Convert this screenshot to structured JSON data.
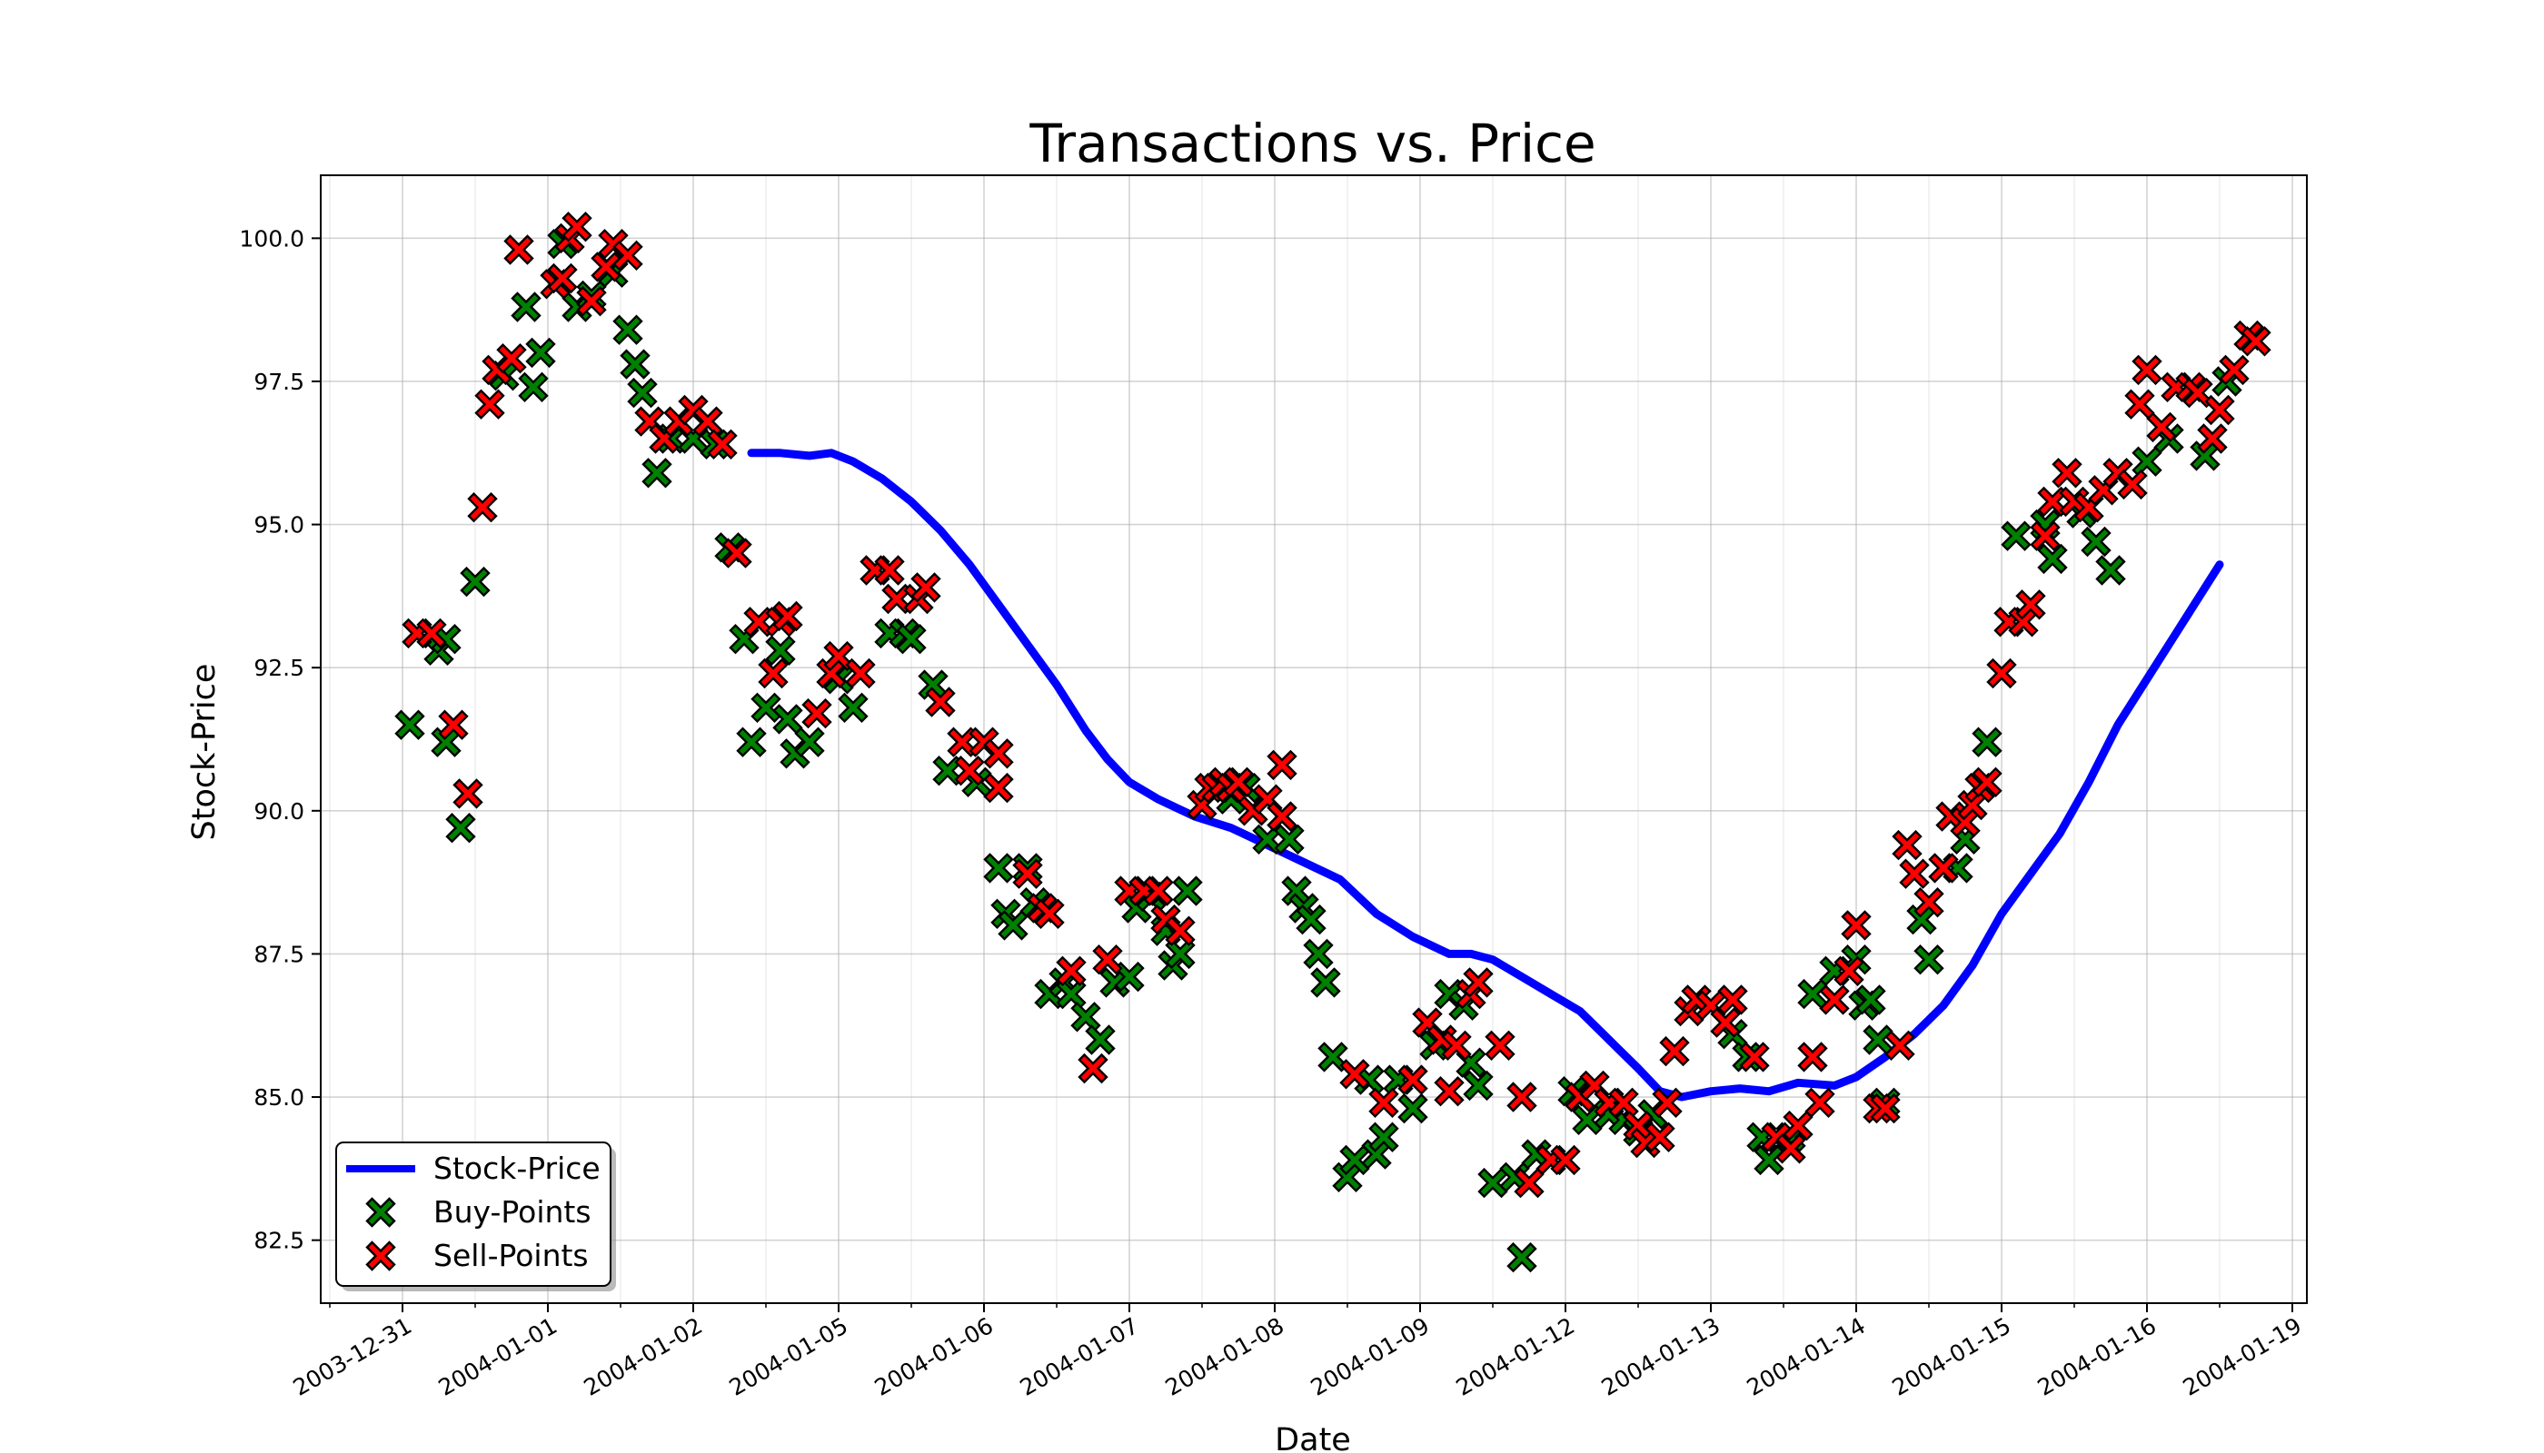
{
  "chart_data": {
    "type": "line+scatter",
    "title": "Transactions vs. Price",
    "xlabel": "Date",
    "ylabel": "Stock-Price",
    "ylim": [
      81.4,
      101.1
    ],
    "x_tick_labels": [
      "2003-12-31",
      "2004-01-01",
      "2004-01-02",
      "2004-01-05",
      "2004-01-06",
      "2004-01-07",
      "2004-01-08",
      "2004-01-09",
      "2004-01-12",
      "2004-01-13",
      "2004-01-14",
      "2004-01-15",
      "2004-01-16",
      "2004-01-19"
    ],
    "y_ticks": [
      82.5,
      85.0,
      87.5,
      90.0,
      92.5,
      95.0,
      97.5,
      100.0
    ],
    "y_tick_labels": [
      "82.5",
      "85.0",
      "87.5",
      "90.0",
      "92.5",
      "95.0",
      "97.5",
      "100.0"
    ],
    "grid": true,
    "legend_position": "lower-left",
    "x_axis_note": "x values are measured in trading-session positions: 0 = 2003-12-31, 1 = 2004-01-01, ... 13 = 2004-01-19",
    "series": [
      {
        "name": "Stock-Price",
        "type": "line",
        "color": "#0000ff",
        "points": [
          [
            2.4,
            96.25
          ],
          [
            2.6,
            96.25
          ],
          [
            2.8,
            96.2
          ],
          [
            2.95,
            96.25
          ],
          [
            3.1,
            96.1
          ],
          [
            3.3,
            95.8
          ],
          [
            3.5,
            95.4
          ],
          [
            3.7,
            94.9
          ],
          [
            3.9,
            94.3
          ],
          [
            4.1,
            93.6
          ],
          [
            4.3,
            92.9
          ],
          [
            4.5,
            92.2
          ],
          [
            4.7,
            91.4
          ],
          [
            4.85,
            90.9
          ],
          [
            5.0,
            90.5
          ],
          [
            5.2,
            90.2
          ],
          [
            5.45,
            89.9
          ],
          [
            5.7,
            89.7
          ],
          [
            5.95,
            89.4
          ],
          [
            6.2,
            89.1
          ],
          [
            6.45,
            88.8
          ],
          [
            6.7,
            88.2
          ],
          [
            6.95,
            87.8
          ],
          [
            7.2,
            87.5
          ],
          [
            7.35,
            87.5
          ],
          [
            7.5,
            87.4
          ],
          [
            7.7,
            87.1
          ],
          [
            7.9,
            86.8
          ],
          [
            8.1,
            86.5
          ],
          [
            8.3,
            86.0
          ],
          [
            8.5,
            85.5
          ],
          [
            8.65,
            85.1
          ],
          [
            8.8,
            85.0
          ],
          [
            9.0,
            85.1
          ],
          [
            9.2,
            85.15
          ],
          [
            9.4,
            85.1
          ],
          [
            9.6,
            85.25
          ],
          [
            9.85,
            85.2
          ],
          [
            10.0,
            85.35
          ],
          [
            10.2,
            85.7
          ],
          [
            10.4,
            86.1
          ],
          [
            10.6,
            86.6
          ],
          [
            10.8,
            87.3
          ],
          [
            11.0,
            88.2
          ],
          [
            11.2,
            88.9
          ],
          [
            11.4,
            89.6
          ],
          [
            11.6,
            90.5
          ],
          [
            11.8,
            91.5
          ],
          [
            12.0,
            92.3
          ],
          [
            12.2,
            93.1
          ],
          [
            12.5,
            94.3
          ]
        ]
      },
      {
        "name": "Buy-Points",
        "type": "scatter",
        "color": "#008000",
        "points": [
          [
            0.05,
            91.5
          ],
          [
            0.25,
            92.8
          ],
          [
            0.3,
            93.0
          ],
          [
            0.3,
            91.2
          ],
          [
            0.4,
            89.7
          ],
          [
            0.5,
            94.0
          ],
          [
            0.7,
            97.6
          ],
          [
            0.85,
            98.8
          ],
          [
            0.9,
            97.4
          ],
          [
            0.95,
            98.0
          ],
          [
            1.1,
            99.9
          ],
          [
            1.2,
            98.8
          ],
          [
            1.3,
            99.0
          ],
          [
            1.45,
            99.4
          ],
          [
            1.55,
            98.4
          ],
          [
            1.6,
            97.8
          ],
          [
            1.65,
            97.3
          ],
          [
            1.75,
            95.9
          ],
          [
            1.85,
            96.5
          ],
          [
            2.0,
            96.5
          ],
          [
            2.15,
            96.4
          ],
          [
            2.25,
            94.6
          ],
          [
            2.35,
            93.0
          ],
          [
            2.4,
            91.2
          ],
          [
            2.5,
            91.8
          ],
          [
            2.6,
            92.8
          ],
          [
            2.65,
            91.6
          ],
          [
            2.7,
            91.0
          ],
          [
            2.8,
            91.2
          ],
          [
            3.0,
            92.3
          ],
          [
            3.1,
            91.8
          ],
          [
            3.35,
            93.1
          ],
          [
            3.45,
            93.1
          ],
          [
            3.5,
            93.0
          ],
          [
            3.65,
            92.2
          ],
          [
            3.75,
            90.7
          ],
          [
            3.95,
            90.5
          ],
          [
            4.1,
            89.0
          ],
          [
            4.15,
            88.2
          ],
          [
            4.2,
            88.0
          ],
          [
            4.3,
            89.0
          ],
          [
            4.35,
            88.4
          ],
          [
            4.45,
            86.8
          ],
          [
            4.55,
            87.0
          ],
          [
            4.6,
            86.8
          ],
          [
            4.7,
            86.4
          ],
          [
            4.8,
            86.0
          ],
          [
            4.9,
            87.0
          ],
          [
            5.0,
            87.1
          ],
          [
            5.05,
            88.3
          ],
          [
            5.15,
            88.5
          ],
          [
            5.25,
            87.9
          ],
          [
            5.3,
            87.3
          ],
          [
            5.35,
            87.5
          ],
          [
            5.4,
            88.6
          ],
          [
            5.7,
            90.2
          ],
          [
            5.8,
            90.4
          ],
          [
            5.95,
            89.5
          ],
          [
            6.05,
            89.9
          ],
          [
            6.1,
            89.5
          ],
          [
            6.15,
            88.6
          ],
          [
            6.2,
            88.3
          ],
          [
            6.25,
            88.1
          ],
          [
            6.3,
            87.5
          ],
          [
            6.35,
            87.0
          ],
          [
            6.4,
            85.7
          ],
          [
            6.5,
            83.6
          ],
          [
            6.55,
            83.9
          ],
          [
            6.65,
            85.3
          ],
          [
            6.7,
            84.0
          ],
          [
            6.75,
            84.3
          ],
          [
            6.85,
            85.3
          ],
          [
            6.95,
            84.8
          ],
          [
            7.1,
            85.9
          ],
          [
            7.2,
            86.8
          ],
          [
            7.3,
            86.6
          ],
          [
            7.35,
            85.6
          ],
          [
            7.4,
            85.2
          ],
          [
            7.5,
            83.5
          ],
          [
            7.65,
            83.6
          ],
          [
            7.7,
            82.2
          ],
          [
            7.8,
            84.0
          ],
          [
            8.05,
            85.1
          ],
          [
            8.15,
            84.6
          ],
          [
            8.3,
            84.7
          ],
          [
            8.4,
            84.6
          ],
          [
            8.5,
            84.4
          ],
          [
            8.6,
            84.7
          ],
          [
            9.15,
            86.1
          ],
          [
            9.25,
            85.7
          ],
          [
            9.35,
            84.3
          ],
          [
            9.4,
            83.9
          ],
          [
            9.55,
            84.3
          ],
          [
            9.7,
            86.8
          ],
          [
            9.85,
            87.2
          ],
          [
            10.0,
            87.4
          ],
          [
            10.05,
            86.6
          ],
          [
            10.1,
            86.7
          ],
          [
            10.15,
            86.0
          ],
          [
            10.2,
            84.9
          ],
          [
            10.45,
            88.1
          ],
          [
            10.5,
            87.4
          ],
          [
            10.7,
            89.0
          ],
          [
            10.75,
            89.5
          ],
          [
            10.9,
            91.2
          ],
          [
            11.1,
            94.8
          ],
          [
            11.3,
            95.0
          ],
          [
            11.35,
            94.4
          ],
          [
            11.55,
            95.2
          ],
          [
            11.65,
            94.7
          ],
          [
            11.75,
            94.2
          ],
          [
            12.0,
            96.1
          ],
          [
            12.15,
            96.5
          ],
          [
            12.4,
            96.2
          ],
          [
            12.55,
            97.5
          ]
        ]
      },
      {
        "name": "Sell-Points",
        "type": "scatter",
        "color": "#ff0000",
        "points": [
          [
            0.1,
            93.1
          ],
          [
            0.2,
            93.1
          ],
          [
            0.35,
            91.5
          ],
          [
            0.45,
            90.3
          ],
          [
            0.55,
            95.3
          ],
          [
            0.6,
            97.1
          ],
          [
            0.65,
            97.7
          ],
          [
            0.75,
            97.9
          ],
          [
            0.8,
            99.8
          ],
          [
            1.05,
            99.2
          ],
          [
            1.1,
            99.3
          ],
          [
            1.15,
            100.0
          ],
          [
            1.2,
            100.2
          ],
          [
            1.3,
            98.9
          ],
          [
            1.4,
            99.5
          ],
          [
            1.45,
            99.9
          ],
          [
            1.55,
            99.7
          ],
          [
            1.7,
            96.8
          ],
          [
            1.8,
            96.5
          ],
          [
            1.9,
            96.8
          ],
          [
            2.0,
            97.0
          ],
          [
            2.1,
            96.8
          ],
          [
            2.2,
            96.4
          ],
          [
            2.3,
            94.5
          ],
          [
            2.45,
            93.3
          ],
          [
            2.55,
            92.4
          ],
          [
            2.6,
            93.3
          ],
          [
            2.65,
            93.4
          ],
          [
            2.85,
            91.7
          ],
          [
            2.95,
            92.4
          ],
          [
            3.0,
            92.7
          ],
          [
            3.15,
            92.4
          ],
          [
            3.25,
            94.2
          ],
          [
            3.35,
            94.2
          ],
          [
            3.4,
            93.7
          ],
          [
            3.55,
            93.7
          ],
          [
            3.6,
            93.9
          ],
          [
            3.7,
            91.9
          ],
          [
            3.85,
            91.2
          ],
          [
            3.9,
            90.7
          ],
          [
            4.0,
            91.2
          ],
          [
            4.1,
            91.0
          ],
          [
            4.1,
            90.4
          ],
          [
            4.3,
            88.9
          ],
          [
            4.4,
            88.3
          ],
          [
            4.45,
            88.2
          ],
          [
            4.6,
            87.2
          ],
          [
            4.75,
            85.5
          ],
          [
            4.85,
            87.4
          ],
          [
            5.0,
            88.6
          ],
          [
            5.1,
            88.6
          ],
          [
            5.2,
            88.6
          ],
          [
            5.25,
            88.1
          ],
          [
            5.35,
            87.9
          ],
          [
            5.5,
            90.1
          ],
          [
            5.55,
            90.4
          ],
          [
            5.6,
            90.4
          ],
          [
            5.65,
            90.5
          ],
          [
            5.7,
            90.4
          ],
          [
            5.75,
            90.5
          ],
          [
            5.85,
            90.0
          ],
          [
            5.95,
            90.2
          ],
          [
            6.05,
            89.9
          ],
          [
            6.05,
            90.8
          ],
          [
            6.55,
            85.4
          ],
          [
            6.75,
            84.9
          ],
          [
            6.95,
            85.3
          ],
          [
            7.05,
            86.3
          ],
          [
            7.15,
            86.0
          ],
          [
            7.2,
            85.1
          ],
          [
            7.25,
            85.9
          ],
          [
            7.35,
            86.8
          ],
          [
            7.4,
            87.0
          ],
          [
            7.55,
            85.9
          ],
          [
            7.7,
            85.0
          ],
          [
            7.75,
            83.5
          ],
          [
            7.9,
            83.9
          ],
          [
            8.0,
            83.9
          ],
          [
            8.1,
            85.0
          ],
          [
            8.2,
            85.2
          ],
          [
            8.3,
            84.9
          ],
          [
            8.4,
            84.9
          ],
          [
            8.5,
            84.5
          ],
          [
            8.55,
            84.2
          ],
          [
            8.65,
            84.3
          ],
          [
            8.7,
            84.9
          ],
          [
            8.75,
            85.8
          ],
          [
            8.85,
            86.5
          ],
          [
            8.9,
            86.7
          ],
          [
            9.0,
            86.6
          ],
          [
            9.1,
            86.3
          ],
          [
            9.15,
            86.7
          ],
          [
            9.3,
            85.7
          ],
          [
            9.45,
            84.3
          ],
          [
            9.55,
            84.1
          ],
          [
            9.6,
            84.5
          ],
          [
            9.7,
            85.7
          ],
          [
            9.75,
            84.9
          ],
          [
            9.85,
            86.7
          ],
          [
            9.95,
            87.2
          ],
          [
            10.0,
            88.0
          ],
          [
            10.15,
            84.8
          ],
          [
            10.2,
            84.8
          ],
          [
            10.3,
            85.9
          ],
          [
            10.35,
            89.4
          ],
          [
            10.4,
            88.9
          ],
          [
            10.5,
            88.4
          ],
          [
            10.6,
            89.0
          ],
          [
            10.65,
            89.9
          ],
          [
            10.75,
            89.8
          ],
          [
            10.8,
            90.1
          ],
          [
            10.85,
            90.4
          ],
          [
            10.9,
            90.5
          ],
          [
            11.0,
            92.4
          ],
          [
            11.05,
            93.3
          ],
          [
            11.15,
            93.3
          ],
          [
            11.2,
            93.6
          ],
          [
            11.3,
            94.8
          ],
          [
            11.35,
            95.4
          ],
          [
            11.45,
            95.9
          ],
          [
            11.5,
            95.4
          ],
          [
            11.6,
            95.3
          ],
          [
            11.7,
            95.6
          ],
          [
            11.8,
            95.9
          ],
          [
            11.9,
            95.7
          ],
          [
            11.95,
            97.1
          ],
          [
            12.0,
            97.7
          ],
          [
            12.1,
            96.7
          ],
          [
            12.2,
            97.4
          ],
          [
            12.3,
            97.4
          ],
          [
            12.35,
            97.3
          ],
          [
            12.45,
            96.5
          ],
          [
            12.5,
            97.0
          ],
          [
            12.6,
            97.7
          ],
          [
            12.7,
            98.3
          ],
          [
            12.75,
            98.2
          ]
        ]
      }
    ]
  },
  "legend": {
    "line_label": "Stock-Price",
    "buy_label": "Buy-Points",
    "sell_label": "Sell-Points"
  }
}
